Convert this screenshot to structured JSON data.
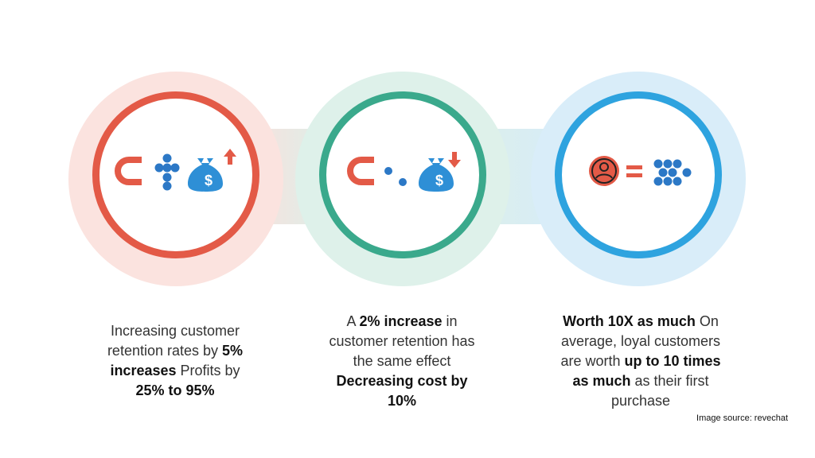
{
  "colors": {
    "red": "#e35a47",
    "green": "#3aa98c",
    "blue": "#2ea3df",
    "people_blue": "#2c78c6",
    "bag_blue": "#2e8fd6"
  },
  "icons": {
    "panel1": [
      "magnet-icon",
      "customer-group-icon",
      "money-bag-icon",
      "arrow-up-icon"
    ],
    "panel2": [
      "magnet-icon",
      "customer-pair-icon",
      "money-bag-icon",
      "arrow-down-icon"
    ],
    "panel3": [
      "customer-avatar-icon",
      "equals-icon",
      "customer-group-icon"
    ]
  },
  "panel1": {
    "t1": "Increasing customer",
    "t2": "retention rates by ",
    "b1": "5%",
    "b2": "increases",
    "t3": " Profits by",
    "b3": "25% to 95%"
  },
  "panel2": {
    "t1": "A ",
    "b1": "2% increase",
    "t2": " in",
    "t3": "customer retention has",
    "t4": "the same effect",
    "b2": "Decreasing cost by",
    "b3": "10%"
  },
  "panel3": {
    "b1": "Worth 10X as much",
    "t1": " On",
    "t2": "average, loyal customers",
    "t3": "are worth ",
    "b2": "up to 10 times",
    "b3": "as much",
    "t4": " as their first",
    "t5": "purchase"
  },
  "source": "Image source: revechat"
}
